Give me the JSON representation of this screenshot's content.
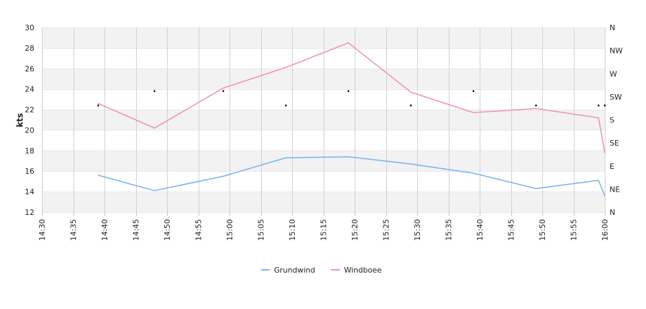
{
  "chart_data": {
    "type": "line",
    "title": "",
    "ylabel": "kts",
    "ylim": [
      12,
      30
    ],
    "yticks": [
      12,
      14,
      16,
      18,
      20,
      22,
      24,
      26,
      28,
      30
    ],
    "xlim": [
      "14:30",
      "16:00"
    ],
    "xticks": [
      "14:30",
      "14:35",
      "14:40",
      "14:45",
      "14:50",
      "14:55",
      "15:00",
      "15:05",
      "15:10",
      "15:15",
      "15:20",
      "15:25",
      "15:30",
      "15:35",
      "15:40",
      "15:45",
      "15:50",
      "15:55",
      "16:00"
    ],
    "grid": true,
    "band_color": "#f2f2f2",
    "legend_position": "bottom-center",
    "series": [
      {
        "name": "Grundwind",
        "color": "#7cb5ec",
        "points": [
          {
            "x": "14:39",
            "y": 15.6
          },
          {
            "x": "14:48",
            "y": 14.1
          },
          {
            "x": "14:59",
            "y": 15.5
          },
          {
            "x": "15:09",
            "y": 17.3
          },
          {
            "x": "15:19",
            "y": 17.4
          },
          {
            "x": "15:29",
            "y": 16.7
          },
          {
            "x": "15:39",
            "y": 15.8
          },
          {
            "x": "15:49",
            "y": 14.3
          },
          {
            "x": "15:59",
            "y": 15.1
          },
          {
            "x": "16:00",
            "y": 13.6
          }
        ]
      },
      {
        "name": "Windboee",
        "color": "#f28fbd",
        "points": [
          {
            "x": "14:39",
            "y": 22.6
          },
          {
            "x": "14:48",
            "y": 20.2
          },
          {
            "x": "14:59",
            "y": 24.1
          },
          {
            "x": "15:09",
            "y": 26.1
          },
          {
            "x": "15:19",
            "y": 28.5
          },
          {
            "x": "15:29",
            "y": 23.7
          },
          {
            "x": "15:39",
            "y": 21.7
          },
          {
            "x": "15:49",
            "y": 22.1
          },
          {
            "x": "15:59",
            "y": 21.2
          },
          {
            "x": "16:00",
            "y": 17.8
          }
        ]
      }
    ],
    "direction_axis": {
      "labels": [
        "N",
        "NW",
        "W",
        "SW",
        "S",
        "SE",
        "E",
        "NE",
        "N"
      ],
      "degrees": [
        360,
        315,
        270,
        225,
        180,
        135,
        90,
        45,
        0
      ]
    },
    "direction_points": [
      {
        "x": "14:39",
        "deg": 208
      },
      {
        "x": "14:48",
        "deg": 236
      },
      {
        "x": "14:59",
        "deg": 236
      },
      {
        "x": "15:09",
        "deg": 208
      },
      {
        "x": "15:19",
        "deg": 236
      },
      {
        "x": "15:29",
        "deg": 208
      },
      {
        "x": "15:39",
        "deg": 236
      },
      {
        "x": "15:49",
        "deg": 208
      },
      {
        "x": "15:59",
        "deg": 208
      },
      {
        "x": "16:00",
        "deg": 208
      }
    ]
  }
}
